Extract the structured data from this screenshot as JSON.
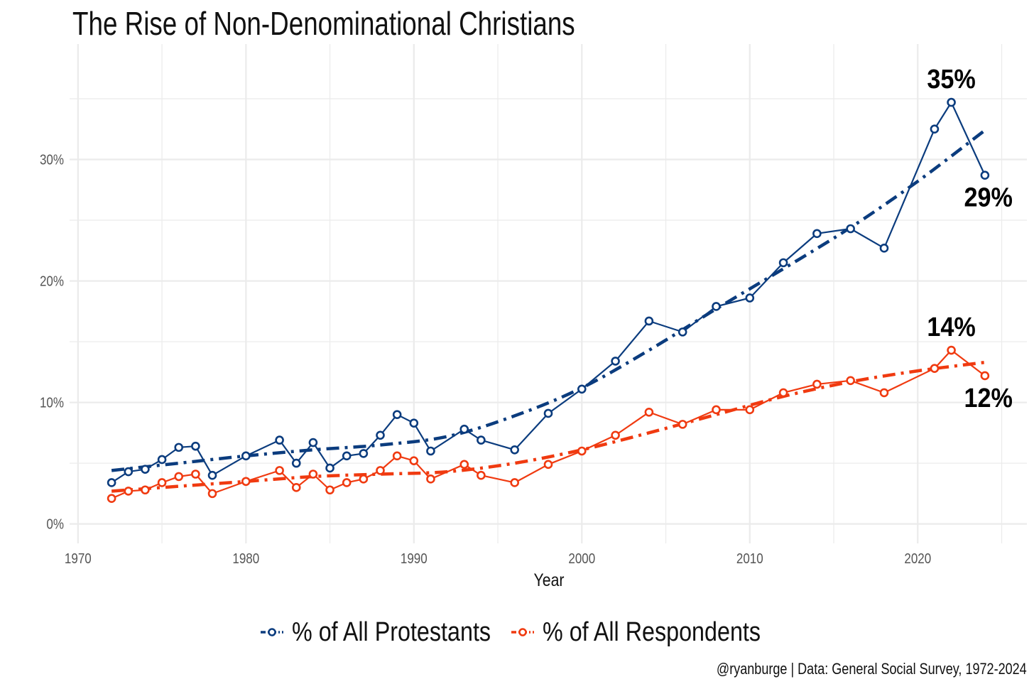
{
  "title": "The Rise of Non-Denominational Christians",
  "caption": "@ryanburge | Data: General Social Survey, 1972-2024",
  "colors": {
    "protestants": "#0B3C7E",
    "respondents": "#F03A10",
    "grid": "#EBEBEB",
    "background": "#FFFFFF"
  },
  "legend": {
    "items": [
      {
        "label": "% of All Protestants",
        "color": "#0B3C7E"
      },
      {
        "label": "% of All Respondents",
        "color": "#F03A10"
      }
    ]
  },
  "chart_data": {
    "type": "line",
    "title": "The Rise of Non-Denominational Christians",
    "xlabel": "Year",
    "ylabel": "",
    "xlim": [
      1969.5,
      2026.5
    ],
    "ylim": [
      -1.6,
      39.5
    ],
    "x_ticks": [
      1970,
      1980,
      1990,
      2000,
      2010,
      2020
    ],
    "x_tick_labels": [
      "1970",
      "1980",
      "1990",
      "2000",
      "2010",
      "2020"
    ],
    "y_ticks": [
      0,
      10,
      20,
      30
    ],
    "y_tick_labels": [
      "0%",
      "10%",
      "20%",
      "30%"
    ],
    "grid": true,
    "legend_position": "bottom",
    "series": [
      {
        "name": "% of All Protestants",
        "color": "#0B3C7E",
        "x": [
          1972,
          1973,
          1974,
          1975,
          1976,
          1977,
          1978,
          1980,
          1982,
          1983,
          1984,
          1985,
          1986,
          1987,
          1988,
          1989,
          1990,
          1991,
          1993,
          1994,
          1996,
          1998,
          2000,
          2002,
          2004,
          2006,
          2008,
          2010,
          2012,
          2014,
          2016,
          2018,
          2021,
          2022,
          2024
        ],
        "y": [
          3.4,
          4.3,
          4.5,
          5.3,
          6.3,
          6.4,
          4.0,
          5.6,
          6.9,
          5.0,
          6.7,
          4.6,
          5.6,
          5.8,
          7.3,
          9.0,
          8.3,
          6.0,
          7.8,
          6.9,
          6.1,
          9.1,
          11.1,
          13.4,
          16.7,
          15.8,
          17.9,
          18.6,
          21.5,
          23.9,
          24.3,
          22.7,
          32.5,
          34.7,
          28.7
        ],
        "trend": {
          "x": [
            1972,
            1976,
            1980,
            1984,
            1988,
            1992,
            1996,
            2000,
            2004,
            2008,
            2012,
            2016,
            2020,
            2024
          ],
          "y": [
            4.4,
            5.0,
            5.6,
            6.1,
            6.5,
            7.2,
            8.9,
            11.2,
            14.3,
            17.7,
            21.0,
            24.4,
            28.2,
            32.4
          ]
        },
        "end_labels": [
          {
            "text": "35%",
            "x": 2022,
            "y": 34.7,
            "position": "above"
          },
          {
            "text": "29%",
            "x": 2024,
            "y": 28.7,
            "position": "below-right"
          }
        ]
      },
      {
        "name": "% of All Respondents",
        "color": "#F03A10",
        "x": [
          1972,
          1973,
          1974,
          1975,
          1976,
          1977,
          1978,
          1980,
          1982,
          1983,
          1984,
          1985,
          1986,
          1987,
          1988,
          1989,
          1990,
          1991,
          1993,
          1994,
          1996,
          1998,
          2000,
          2002,
          2004,
          2006,
          2008,
          2010,
          2012,
          2014,
          2016,
          2018,
          2021,
          2022,
          2024
        ],
        "y": [
          2.1,
          2.7,
          2.8,
          3.4,
          3.9,
          4.1,
          2.5,
          3.5,
          4.4,
          3.0,
          4.1,
          2.8,
          3.4,
          3.7,
          4.4,
          5.6,
          5.2,
          3.7,
          4.9,
          4.0,
          3.4,
          4.9,
          6.0,
          7.3,
          9.2,
          8.2,
          9.4,
          9.4,
          10.8,
          11.5,
          11.8,
          10.8,
          12.8,
          14.3,
          12.2
        ],
        "trend": {
          "x": [
            1972,
            1976,
            1980,
            1984,
            1988,
            1992,
            1996,
            2000,
            2004,
            2008,
            2012,
            2016,
            2020,
            2024
          ],
          "y": [
            2.7,
            3.1,
            3.5,
            3.9,
            4.1,
            4.3,
            5.0,
            6.1,
            7.5,
            9.0,
            10.5,
            11.7,
            12.6,
            13.3
          ]
        },
        "end_labels": [
          {
            "text": "14%",
            "x": 2022,
            "y": 14.3,
            "position": "above"
          },
          {
            "text": "12%",
            "x": 2024,
            "y": 12.2,
            "position": "below-right"
          }
        ]
      }
    ]
  }
}
